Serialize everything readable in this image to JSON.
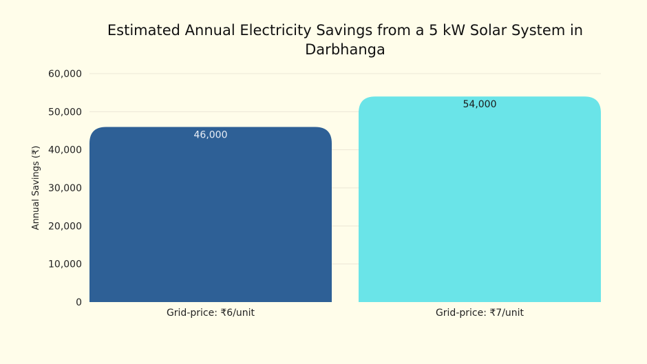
{
  "chart_data": {
    "type": "bar",
    "title": "Estimated Annual Electricity Savings from a 5 kW Solar System in Darbhanga",
    "xlabel": "",
    "ylabel": "Annual Savings (₹)",
    "categories": [
      "Grid-price: ₹6/unit",
      "Grid-price: ₹7/unit"
    ],
    "values": [
      46000,
      54000
    ],
    "data_labels": [
      "46,000",
      "54,000"
    ],
    "ylim": [
      0,
      60000
    ],
    "yticks": [
      0,
      10000,
      20000,
      30000,
      40000,
      50000,
      60000
    ],
    "ytick_labels": [
      "0",
      "10,000",
      "20,000",
      "30,000",
      "40,000",
      "50,000",
      "60,000"
    ],
    "grid": true,
    "colors": [
      "#2e6096",
      "#6ae4e8"
    ],
    "label_colors": [
      "#e8eef6",
      "#1a1a1a"
    ]
  }
}
